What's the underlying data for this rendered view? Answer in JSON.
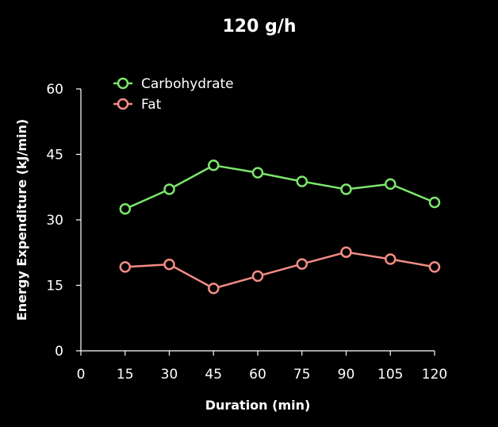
{
  "chart_data": {
    "type": "line",
    "title": "120 g/h",
    "xlabel": "Duration (min)",
    "ylabel": "Energy Expenditure (kJ/min)",
    "x": [
      15,
      30,
      45,
      60,
      75,
      90,
      105,
      120
    ],
    "xlim": [
      0,
      120
    ],
    "ylim": [
      0,
      60
    ],
    "xticks": [
      0,
      15,
      30,
      45,
      60,
      75,
      90,
      105,
      120
    ],
    "yticks": [
      0,
      15,
      30,
      45,
      60
    ],
    "grid": false,
    "legend_position": "top-left",
    "series": [
      {
        "name": "Carbohydrate",
        "color": "#7be56b",
        "values": [
          32.5,
          37,
          42.5,
          40.8,
          38.8,
          37,
          38.2,
          34
        ]
      },
      {
        "name": "Fat",
        "color": "#f28d85",
        "values": [
          19.2,
          19.8,
          14.3,
          17.1,
          19.9,
          22.6,
          21,
          19.2
        ]
      }
    ]
  }
}
